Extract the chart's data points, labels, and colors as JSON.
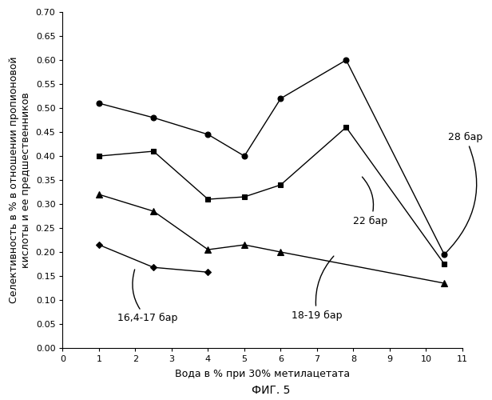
{
  "series": [
    {
      "label": "28 бар",
      "marker": "o",
      "x": [
        1,
        2.5,
        4,
        5,
        6,
        7.8,
        10.5
      ],
      "y": [
        0.51,
        0.48,
        0.445,
        0.4,
        0.52,
        0.6,
        0.195
      ]
    },
    {
      "label": "22 бар",
      "marker": "s",
      "x": [
        1,
        2.5,
        4,
        5,
        6,
        7.8,
        10.5
      ],
      "y": [
        0.4,
        0.41,
        0.31,
        0.315,
        0.34,
        0.46,
        0.175
      ]
    },
    {
      "label": "18-19 бар",
      "marker": "^",
      "x": [
        1,
        2.5,
        4,
        5,
        6,
        10.5
      ],
      "y": [
        0.32,
        0.285,
        0.205,
        0.215,
        0.2,
        0.135
      ]
    },
    {
      "label": "16,4-17 бар",
      "marker": "D",
      "x": [
        1,
        2.5,
        4
      ],
      "y": [
        0.215,
        0.168,
        0.158
      ]
    }
  ],
  "xlim": [
    0,
    11
  ],
  "ylim": [
    0.0,
    0.7
  ],
  "xticks": [
    0,
    1,
    2,
    3,
    4,
    5,
    6,
    7,
    8,
    9,
    10,
    11
  ],
  "yticks": [
    0.0,
    0.05,
    0.1,
    0.15,
    0.2,
    0.25,
    0.3,
    0.35,
    0.4,
    0.45,
    0.5,
    0.55,
    0.6,
    0.65,
    0.7
  ],
  "xlabel": "Вода в % при 30% метилацетата",
  "ylabel": "Селективность в % в отношении пропионовой\nкислоты и ее предшественников",
  "fig_label": "ФИГ. 5",
  "line_color": "black",
  "font_size_labels": 9,
  "font_size_ticks": 8,
  "font_size_fig_label": 10,
  "font_size_annotations": 9
}
